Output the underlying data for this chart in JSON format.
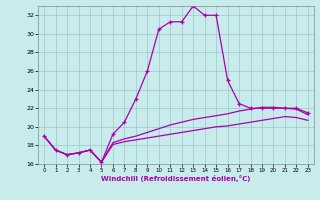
{
  "xlabel": "Windchill (Refroidissement éolien,°C)",
  "background_color": "#c8ecec",
  "line_color": "#aa00aa",
  "grid_color": "#9ec8c8",
  "xlim": [
    -0.5,
    23.5
  ],
  "ylim": [
    16,
    33
  ],
  "yticks": [
    16,
    18,
    20,
    22,
    24,
    26,
    28,
    30,
    32
  ],
  "xticks": [
    0,
    1,
    2,
    3,
    4,
    5,
    6,
    7,
    8,
    9,
    10,
    11,
    12,
    13,
    14,
    15,
    16,
    17,
    18,
    19,
    20,
    21,
    22,
    23
  ],
  "hours": [
    0,
    1,
    2,
    3,
    4,
    5,
    6,
    7,
    8,
    9,
    10,
    11,
    12,
    13,
    14,
    15,
    16,
    17,
    18,
    19,
    20,
    21,
    22,
    23
  ],
  "line1": [
    19.0,
    17.5,
    17.0,
    17.2,
    17.5,
    16.2,
    19.2,
    20.5,
    23.0,
    26.0,
    30.5,
    31.3,
    31.3,
    33.0,
    32.0,
    32.0,
    25.0,
    22.5,
    22.0,
    22.0,
    22.0,
    22.0,
    22.0,
    21.5
  ],
  "line2": [
    19.0,
    17.5,
    17.0,
    17.2,
    17.5,
    16.2,
    18.1,
    18.4,
    18.6,
    18.8,
    19.0,
    19.2,
    19.4,
    19.6,
    19.8,
    20.0,
    20.1,
    20.3,
    20.5,
    20.7,
    20.9,
    21.1,
    21.0,
    20.7
  ],
  "line3": [
    19.0,
    17.5,
    17.0,
    17.2,
    17.5,
    16.2,
    18.3,
    18.7,
    19.0,
    19.4,
    19.8,
    20.2,
    20.5,
    20.8,
    21.0,
    21.2,
    21.4,
    21.7,
    21.9,
    22.1,
    22.1,
    22.0,
    21.9,
    21.3
  ]
}
